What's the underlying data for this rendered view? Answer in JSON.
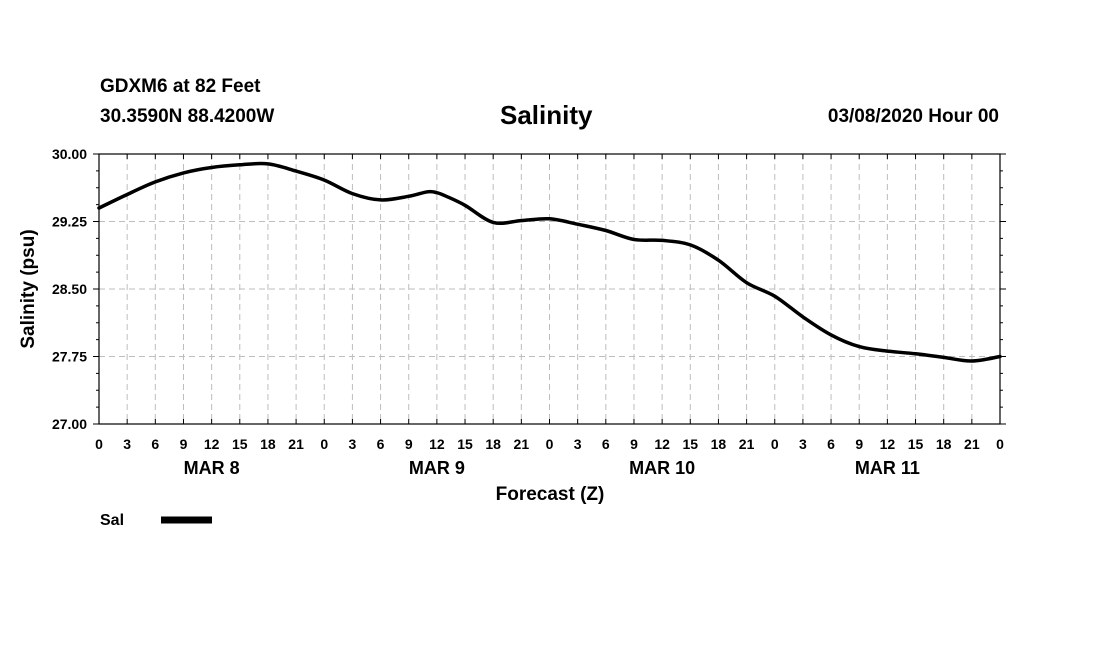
{
  "header": {
    "station": "GDXM6 at 82 Feet",
    "coords": "30.3590N 88.4200W",
    "date": "03/08/2020 Hour 00"
  },
  "chart_data": {
    "type": "line",
    "title": "Salinity",
    "xlabel": "Forecast (Z)",
    "ylabel": "Salinity (psu)",
    "ylim": [
      27.0,
      30.0
    ],
    "yticks": [
      "27.00",
      "27.75",
      "28.50",
      "29.25",
      "30.00"
    ],
    "xlim": [
      0,
      96
    ],
    "x_tick_labels": [
      "0",
      "3",
      "6",
      "9",
      "12",
      "15",
      "18",
      "21",
      "0",
      "3",
      "6",
      "9",
      "12",
      "15",
      "18",
      "21",
      "0",
      "3",
      "6",
      "9",
      "12",
      "15",
      "18",
      "21",
      "0",
      "3",
      "6",
      "9",
      "12",
      "15",
      "18",
      "21",
      "0"
    ],
    "day_labels": [
      {
        "label": "MAR 8",
        "hour": 12
      },
      {
        "label": "MAR 9",
        "hour": 36
      },
      {
        "label": "MAR 10",
        "hour": 60
      },
      {
        "label": "MAR 11",
        "hour": 84
      }
    ],
    "grid": true,
    "series": [
      {
        "name": "Sal",
        "color": "#000000",
        "x": [
          0,
          3,
          6,
          9,
          12,
          15,
          18,
          21,
          24,
          27,
          30,
          33,
          35,
          36,
          37,
          39,
          42,
          45,
          48,
          51,
          54,
          57,
          60,
          63,
          66,
          69,
          72,
          75,
          78,
          81,
          84,
          87,
          90,
          93,
          96
        ],
        "values": [
          29.4,
          29.55,
          29.69,
          29.79,
          29.85,
          29.88,
          29.89,
          29.81,
          29.71,
          29.56,
          29.49,
          29.53,
          29.58,
          29.57,
          29.53,
          29.43,
          29.24,
          29.26,
          29.28,
          29.22,
          29.15,
          29.05,
          29.04,
          28.99,
          28.82,
          28.57,
          28.42,
          28.19,
          27.99,
          27.86,
          27.81,
          27.78,
          27.74,
          27.7,
          27.75
        ]
      }
    ]
  },
  "legend": {
    "label": "Sal"
  }
}
